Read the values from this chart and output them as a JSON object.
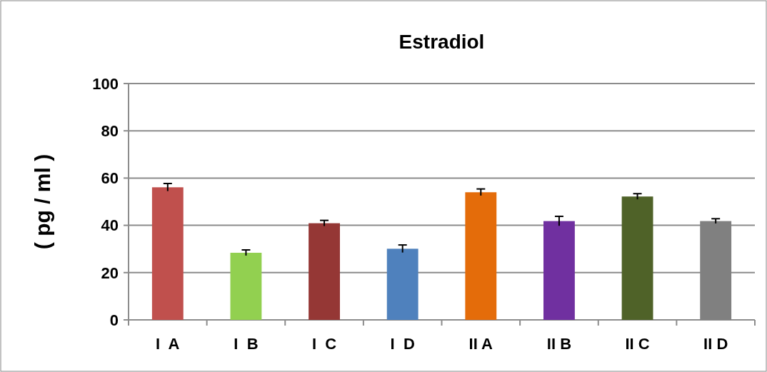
{
  "chart_data": {
    "type": "bar",
    "title": "Estradiol",
    "ylabel": "( pg / ml )",
    "categories": [
      "I  A",
      "I  B",
      "I  C",
      "I  D",
      "II A",
      "II B",
      "II C",
      "II D"
    ],
    "values": [
      56.1,
      28.4,
      40.9,
      30.1,
      54.0,
      41.8,
      52.2,
      41.8
    ],
    "errors": [
      1.6,
      1.2,
      1.2,
      1.6,
      1.4,
      2.0,
      1.2,
      1.0
    ],
    "colors": [
      "#c0504d",
      "#92d050",
      "#953735",
      "#4f81bd",
      "#e46c0a",
      "#7030a0",
      "#4f6228",
      "#808080"
    ],
    "ylim": [
      0,
      100
    ],
    "yticks": [
      0,
      20,
      40,
      60,
      80,
      100
    ],
    "grid": "y"
  }
}
